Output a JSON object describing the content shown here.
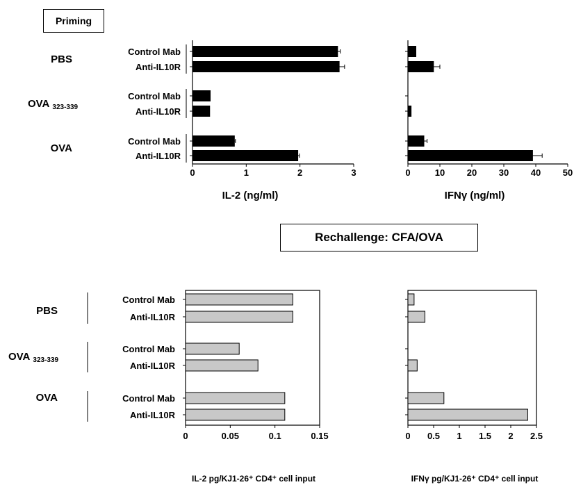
{
  "labels": {
    "priming": "Priming",
    "rechallenge": "Rechallenge: CFA/OVA"
  },
  "groups": [
    {
      "name": "PBS",
      "sub": ""
    },
    {
      "name": "OVA",
      "sub": "323-339"
    },
    {
      "name": "OVA",
      "sub": ""
    }
  ],
  "treatments": [
    "Control Mab",
    "Anti-IL10R"
  ],
  "colors": {
    "priming_bar": "#000000",
    "rechallenge_bar": "#c8c8c8",
    "axis": "#000000"
  },
  "chart_data": [
    {
      "type": "bar",
      "orientation": "horizontal",
      "panel": "priming-il2",
      "xlabel": "IL-2 (ng/ml)",
      "xlim": [
        0,
        3
      ],
      "ticks": [
        0,
        1,
        2,
        3
      ],
      "tick_labels": [
        "0",
        "1",
        "2",
        "3"
      ],
      "categories": [
        "Control Mab",
        "Anti-IL10R",
        "Control Mab",
        "Anti-IL10R",
        "Control Mab",
        "Anti-IL10R"
      ],
      "values": [
        2.7,
        2.73,
        0.33,
        0.32,
        0.78,
        1.96
      ],
      "errors": [
        0.05,
        0.1,
        0,
        0,
        0.02,
        0.03
      ]
    },
    {
      "type": "bar",
      "orientation": "horizontal",
      "panel": "priming-ifng",
      "xlabel": "IFNγ (ng/ml)",
      "xlim": [
        0,
        50
      ],
      "ticks": [
        0,
        10,
        20,
        30,
        40,
        50
      ],
      "tick_labels": [
        "0",
        "10",
        "20",
        "30",
        "40",
        "50"
      ],
      "categories": [
        "Control Mab",
        "Anti-IL10R",
        "Control Mab",
        "Anti-IL10R",
        "Control Mab",
        "Anti-IL10R"
      ],
      "values": [
        2.5,
        8,
        0,
        1,
        5,
        39
      ],
      "errors": [
        0,
        2,
        0,
        0,
        1,
        3
      ]
    },
    {
      "type": "bar",
      "orientation": "horizontal",
      "panel": "rechallenge-il2",
      "xlabel": "IL-2 pg/KJ1-26⁺ CD4⁺ cell input",
      "xlim": [
        0,
        0.15
      ],
      "ticks": [
        0,
        0.05,
        0.1,
        0.15
      ],
      "tick_labels": [
        "0",
        "0.05",
        "0.1",
        "0.15"
      ],
      "categories": [
        "Control Mab",
        "Anti-IL10R",
        "Control Mab",
        "Anti-IL10R",
        "Control Mab",
        "Anti-IL10R"
      ],
      "values": [
        0.12,
        0.12,
        0.06,
        0.081,
        0.111,
        0.111
      ]
    },
    {
      "type": "bar",
      "orientation": "horizontal",
      "panel": "rechallenge-ifng",
      "xlabel": "IFNγ pg/KJ1-26⁺ CD4⁺ cell input",
      "xlim": [
        0,
        2.5
      ],
      "ticks": [
        0,
        0.5,
        1,
        1.5,
        2,
        2.5
      ],
      "tick_labels": [
        "0",
        "0.5",
        "1",
        "1.5",
        "2",
        "2.5"
      ],
      "categories": [
        "Control Mab",
        "Anti-IL10R",
        "Control Mab",
        "Anti-IL10R",
        "Control Mab",
        "Anti-IL10R"
      ],
      "values": [
        0.12,
        0.33,
        0,
        0.18,
        0.7,
        2.33
      ]
    }
  ]
}
